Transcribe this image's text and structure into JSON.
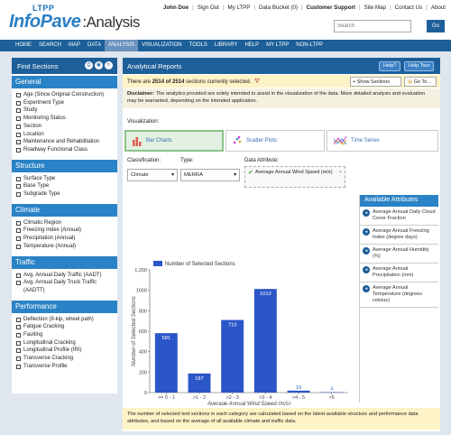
{
  "logo": {
    "small": "LTPP",
    "main": "InfoPave",
    "sep": ":",
    "section": "Analysis"
  },
  "toplinks": [
    "John Doe",
    "Sign Out",
    "My LTPP",
    "Data Bucket (0)",
    "Customer Support",
    "Site Map",
    "Contact Us",
    "About"
  ],
  "search": {
    "placeholder": "Search",
    "go": "Go"
  },
  "nav": [
    "HOME",
    "SEARCH",
    "MAP",
    "DATA",
    "ANALYSIS",
    "VISUALIZATION",
    "TOOLS",
    "LIBRARY",
    "HELP",
    "MY LTPP",
    "NON-LTPP"
  ],
  "sidebar": {
    "title": "Find Sections",
    "sections": [
      {
        "title": "General",
        "items": [
          "Age (Since Original Construction)",
          "Experiment Type",
          "Study",
          "Monitoring Status",
          "Section",
          "Location",
          "Maintenance and Rehabilitation",
          "Roadway Functional Class"
        ]
      },
      {
        "title": "Structure",
        "items": [
          "Surface Type",
          "Base Type",
          "Subgrade Type"
        ]
      },
      {
        "title": "Climate",
        "items": [
          "Climatic Region",
          "Freezing Index (Annual)",
          "Precipitation (Annual)",
          "Temperature (Annual)"
        ]
      },
      {
        "title": "Traffic",
        "items": [
          "Avg. Annual Daily Traffic (AADT)",
          "Avg. Annual Daily Truck Traffic (AADTT)"
        ]
      },
      {
        "title": "Performance",
        "items": [
          "Deflection (9-kip, wheel path)",
          "Fatigue Cracking",
          "Faulting",
          "Longitudinal Cracking",
          "Longitudinal Profile (IRI)",
          "Transverse Cracking",
          "Transverse Profile"
        ]
      }
    ]
  },
  "main": {
    "title": "Analytical Reports",
    "help": "Help?",
    "tour": "Help Tour",
    "selected_pre": "There are ",
    "selected_count": "2514 of 2514",
    "selected_post": " sections currently selected.",
    "show_sections": "+ Show Sections",
    "goto": "Go To...",
    "disclaimer_label": "Disclaimer:",
    "disclaimer": " The analytics provided are solely intended to assist in the visualization of the data. More detailed analysis and evaluation may be warranted, depending on the intended application.",
    "vis_label": "Visualization:",
    "vis_options": [
      "Bar Charts",
      "Scatter Plots",
      "Time Series"
    ],
    "classification_label": "Classification:",
    "classification_value": "Climate",
    "type_label": "Type:",
    "type_value": "MERRA",
    "data_attr_label": "Data Attribute:",
    "data_attr_value": "Average Annual Wind Speed (m/s)",
    "attr_panel_title": "Available Attributes",
    "attributes": [
      "Average Annual Daily Cloud Cover Fraction",
      "Average Annual Freezing Index (degree days)",
      "Average Annual Humidity (%)",
      "Average Annual Precipitation (mm)",
      "Average Annual Temperature (degrees celsius)"
    ],
    "note": "The number of selected test sections in each category are calculated based on the latest available structure and performance data attributes, and based on the average of all available climate and traffic data."
  },
  "chart_data": {
    "type": "bar",
    "categories": [
      ">= 0 - 1",
      ">1 - 2",
      ">2 - 3",
      ">3 - 4",
      ">4 - 5",
      ">5"
    ],
    "series": [
      {
        "name": "Number of Selected Sections",
        "values": [
          581,
          187,
          710,
          1013,
          19,
          4
        ]
      }
    ],
    "xlabel": "Average Annual Wind Speed (m/s)",
    "ylabel": "Number of Selected Sections",
    "ylim": [
      0,
      1200
    ],
    "yticks": [
      0,
      200,
      400,
      600,
      800,
      1000,
      1200
    ],
    "ytick_labels": [
      "0",
      "200",
      "400",
      "600",
      "800",
      "1000",
      "1,200"
    ],
    "grid": false,
    "legend": "top-left",
    "colors": {
      "bar": "#2b56c8",
      "label": "#ffffff",
      "small_label": "#3a6fc0"
    }
  },
  "colors": {
    "nav": "#1d5f99",
    "section": "#2a83c6",
    "highlight": "#fdf3c6"
  }
}
